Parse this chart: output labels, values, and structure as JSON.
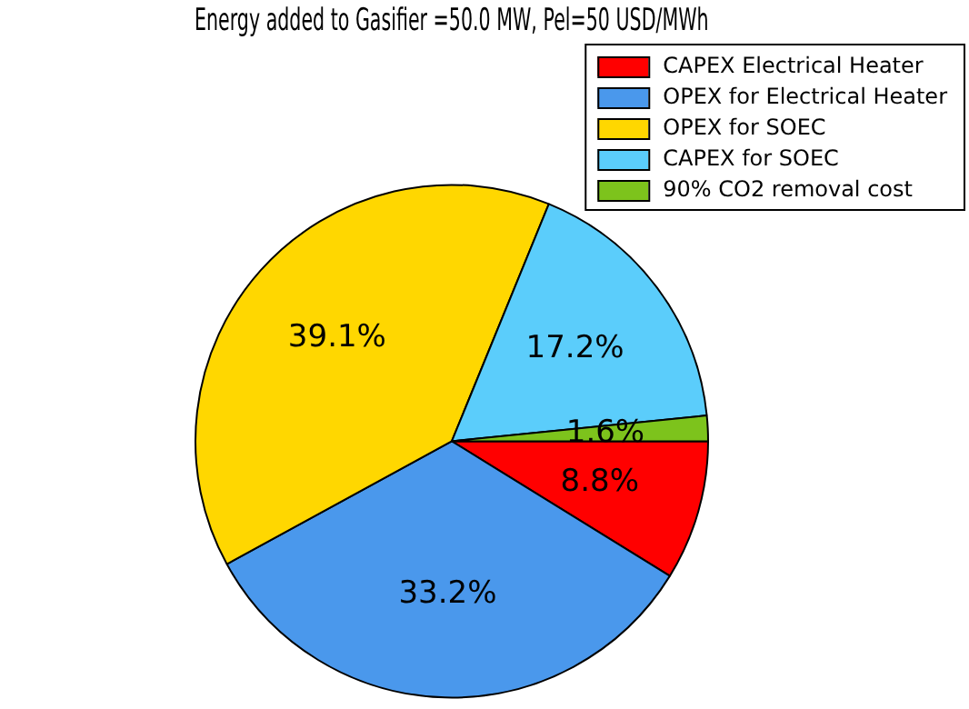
{
  "chart_data": {
    "type": "pie",
    "title": "Energy added to Gasifier =50.0 MW, Pel=50 USD/MWh",
    "categories": [
      "CAPEX Electrical Heater",
      "OPEX for Electrical Heater",
      "OPEX for SOEC",
      "CAPEX for SOEC",
      "90% CO2 removal cost"
    ],
    "values": [
      8.8,
      33.2,
      39.1,
      17.2,
      1.6
    ],
    "value_labels": [
      "8.8%",
      "33.2%",
      "39.1%",
      "17.2%",
      "1.6%"
    ],
    "colors": [
      "#ff0000",
      "#4a98ec",
      "#ffd700",
      "#5bcdfb",
      "#7dc31c"
    ],
    "legend": "top right"
  }
}
